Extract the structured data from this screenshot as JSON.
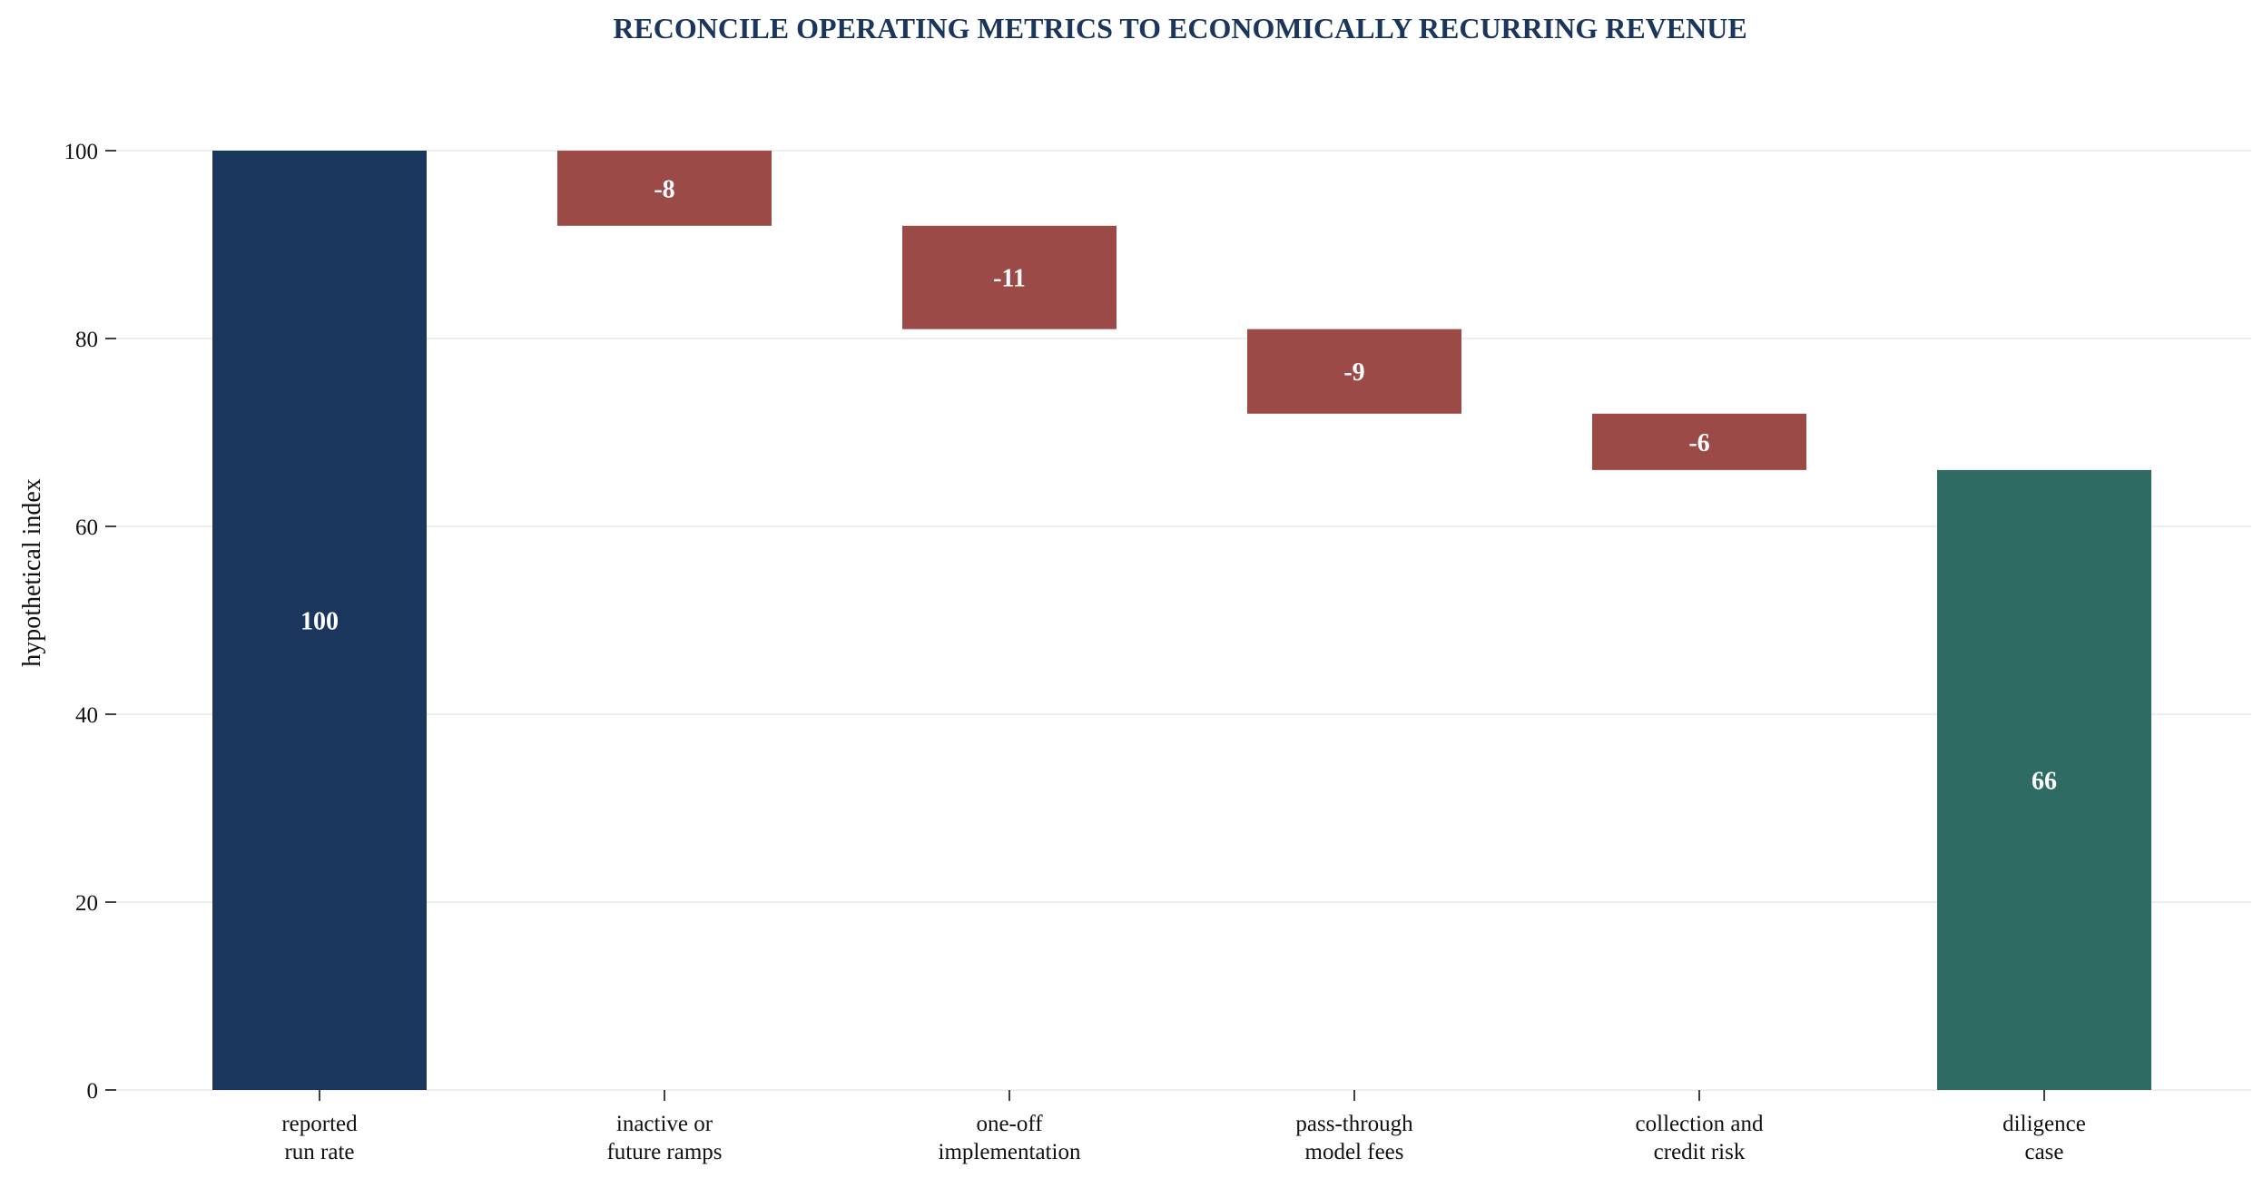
{
  "chart_data": {
    "type": "bar",
    "subtype": "waterfall",
    "title": "RECONCILE OPERATING METRICS TO ECONOMICALLY RECURRING REVENUE",
    "xlabel": "",
    "ylabel": "hypothetical index",
    "ylim": [
      0,
      100
    ],
    "yticks": [
      0,
      20,
      40,
      60,
      80,
      100
    ],
    "grid": "horizontal",
    "legend": "none",
    "categories": [
      [
        "reported",
        "run rate"
      ],
      [
        "inactive or",
        "future ramps"
      ],
      [
        "one-off",
        "implementation"
      ],
      [
        "pass-through",
        "model fees"
      ],
      [
        "collection and",
        "credit risk"
      ],
      [
        "diligence",
        "case"
      ]
    ],
    "values": [
      100,
      -8,
      -11,
      -9,
      -6,
      66
    ],
    "kinds": [
      "total",
      "delta",
      "delta",
      "delta",
      "delta",
      "total"
    ],
    "value_labels": [
      "100",
      "-8",
      "-11",
      "-9",
      "-6",
      "66"
    ],
    "colors": {
      "start_total": "#1b365d",
      "decrease": "#9b4a47",
      "end_total": "#2e6b62",
      "title": "#1b365d",
      "grid": "#e9e9e9",
      "text": "#111111"
    }
  }
}
